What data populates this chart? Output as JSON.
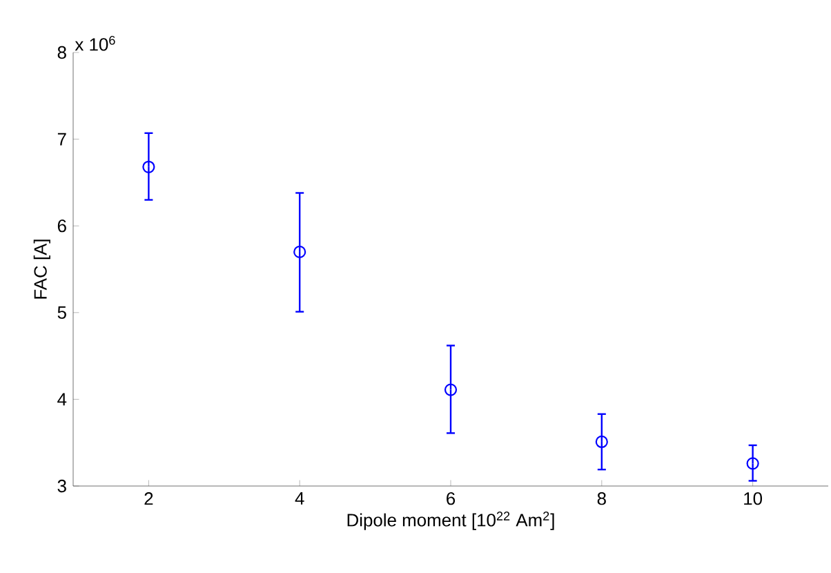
{
  "chart_data": {
    "type": "scatter",
    "xlabel": "Dipole moment [10$^{22}$ Am$^{2}$]",
    "ylabel": "FAC [A]",
    "annotations": [
      "x 10$^{6}$"
    ],
    "x": [
      2,
      4,
      6,
      8,
      10
    ],
    "series": [
      {
        "color": "#0000ff",
        "values": [
          6.68,
          5.7,
          4.11,
          3.51,
          3.26
        ],
        "errors": [
          [
            6.3,
            7.07
          ],
          [
            5.01,
            6.38
          ],
          [
            3.61,
            4.62
          ],
          [
            3.19,
            3.83
          ],
          [
            3.06,
            3.47
          ]
        ]
      }
    ],
    "xlim": [
      1,
      11
    ],
    "ylim": [
      3,
      8
    ],
    "xticks": [
      2,
      4,
      6,
      8,
      10
    ],
    "yticks": [
      3,
      4,
      5,
      6,
      7,
      8
    ],
    "marker": "circle"
  }
}
